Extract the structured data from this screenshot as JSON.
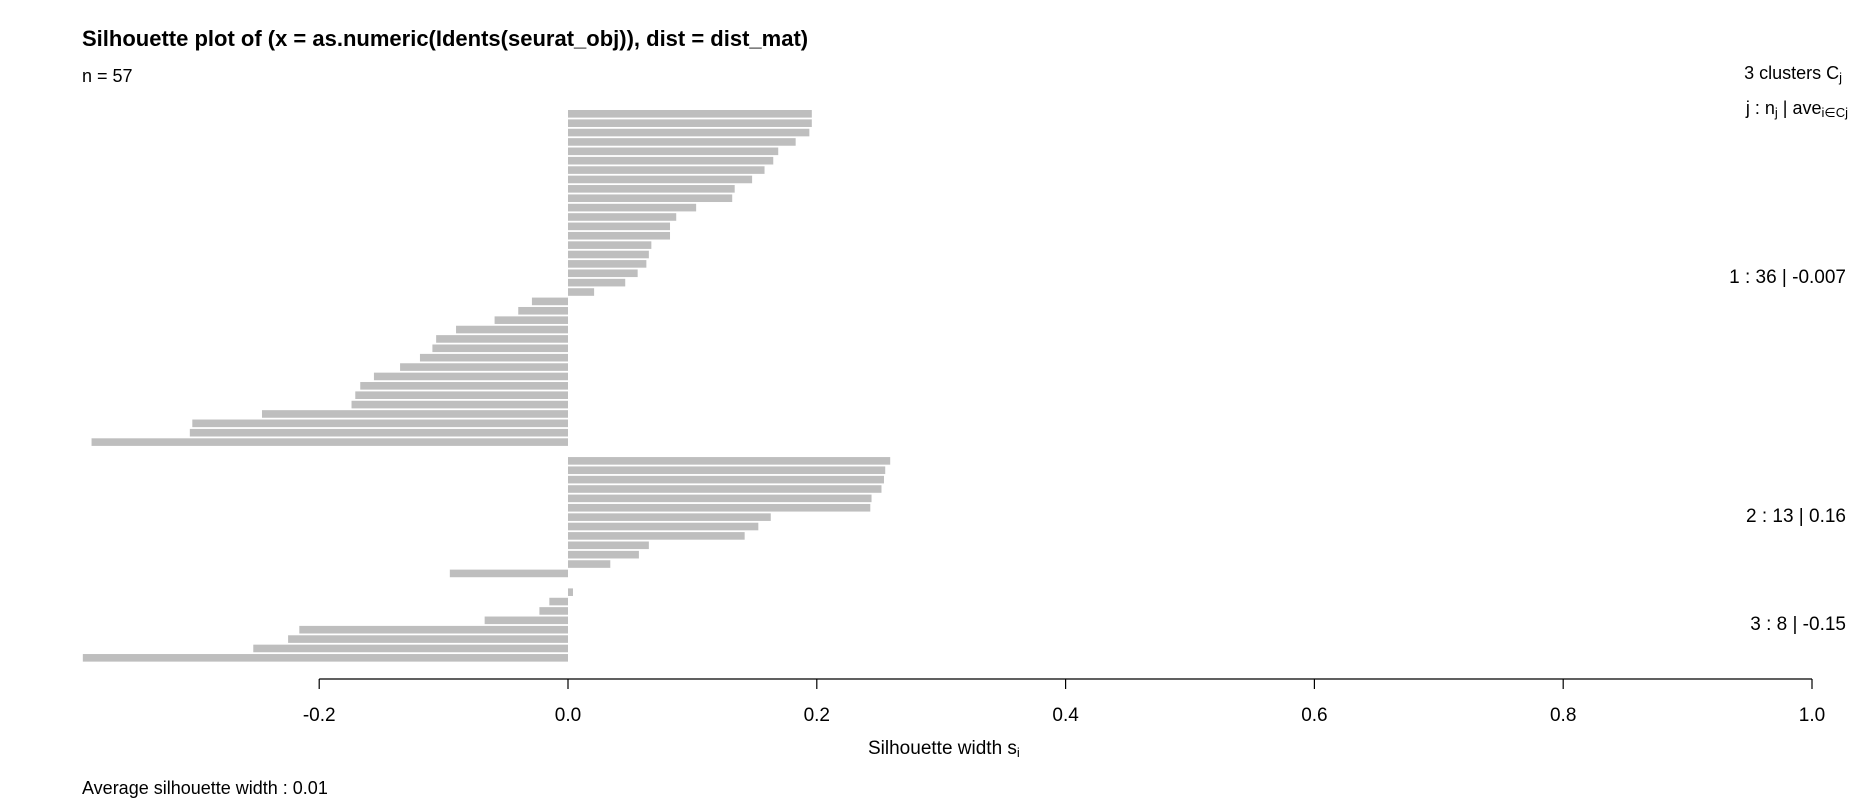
{
  "chart_data": {
    "type": "bar",
    "orientation": "horizontal",
    "title": "Silhouette plot of (x = as.numeric(Idents(seurat_obj)), dist = dist_mat)",
    "n_label": "n = 57",
    "legend_header": {
      "line1_text": "3  clusters  C",
      "line1_sub": "j",
      "line2_a": "j :  n",
      "line2_a_sub": "j",
      "line2_b": " | ave",
      "line2_b_sub": "i∈Cj"
    },
    "xlabel": "Silhouette width s",
    "xlabel_sub": "i",
    "xlim": [
      -0.39,
      1.0
    ],
    "xticks": [
      -0.2,
      0.0,
      0.2,
      0.4,
      0.6,
      0.8,
      1.0
    ],
    "xtick_labels": [
      "-0.2",
      "0.0",
      "0.2",
      "0.4",
      "0.6",
      "0.8",
      "1.0"
    ],
    "bar_color": "#bebebe",
    "average_label": "Average silhouette width :  0.01",
    "clusters": [
      {
        "id": 1,
        "summary": "1 :   36  |  -0.007",
        "values": [
          0.196,
          0.196,
          0.194,
          0.183,
          0.169,
          0.165,
          0.158,
          0.148,
          0.134,
          0.132,
          0.103,
          0.087,
          0.082,
          0.082,
          0.067,
          0.065,
          0.063,
          0.056,
          0.046,
          0.021,
          -0.029,
          -0.04,
          -0.059,
          -0.09,
          -0.106,
          -0.109,
          -0.119,
          -0.135,
          -0.156,
          -0.167,
          -0.171,
          -0.174,
          -0.246,
          -0.302,
          -0.304,
          -0.383
        ]
      },
      {
        "id": 2,
        "summary": "2 :   13  |  0.16",
        "values": [
          0.259,
          0.255,
          0.254,
          0.252,
          0.244,
          0.243,
          0.163,
          0.153,
          0.142,
          0.065,
          0.057,
          0.034,
          -0.095
        ]
      },
      {
        "id": 3,
        "summary": "3 :   8  |  -0.15",
        "values": [
          0.004,
          -0.015,
          -0.023,
          -0.067,
          -0.216,
          -0.225,
          -0.253,
          -0.39
        ]
      }
    ]
  }
}
